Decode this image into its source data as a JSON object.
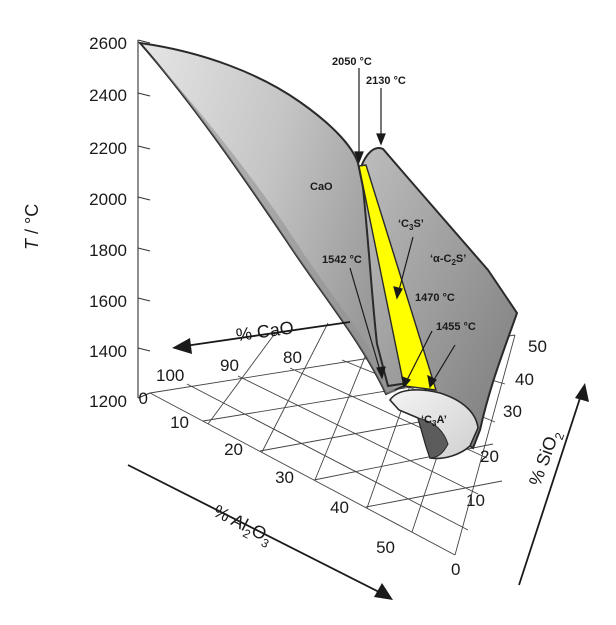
{
  "diagram": {
    "t_axis": {
      "label_symbol": "T",
      "label_unit": " / °C",
      "ticks": [
        "2600",
        "2400",
        "2200",
        "2000",
        "1800",
        "1600",
        "1400",
        "1200"
      ]
    },
    "cao_axis": {
      "label": "% CaO",
      "ticks": [
        "100",
        "90",
        "80"
      ]
    },
    "al2o3_axis": {
      "label_pre": "% Al",
      "label_sub1": "2",
      "label_mid": "O",
      "label_sub2": "3",
      "ticks": [
        "0",
        "10",
        "20",
        "30",
        "40",
        "50"
      ]
    },
    "sio2_axis": {
      "label_pre": "% SiO",
      "label_sub": "2",
      "ticks": [
        "0",
        "10",
        "20",
        "30",
        "40",
        "50"
      ]
    },
    "annotations": {
      "temp_2050": "2050 °C",
      "temp_2130": "2130 °C",
      "temp_1542": "1542 °C",
      "temp_1470": "1470 °C",
      "temp_1455": "1455 °C"
    },
    "phases": {
      "cao": "CaO",
      "c3s": "‘C",
      "c3s_sub": "3",
      "c3s_end": "S’",
      "c2s": "‘α-C",
      "c2s_sub": "2",
      "c2s_end": "S’",
      "c3a": "‘C",
      "c3a_sub": "3",
      "c3a_end": "A’"
    },
    "colors": {
      "surface_light": "#d4d4d4",
      "surface_dark": "#8e8e8e",
      "c3s_field": "#ffff00",
      "outline": "#2a2a2a"
    }
  }
}
